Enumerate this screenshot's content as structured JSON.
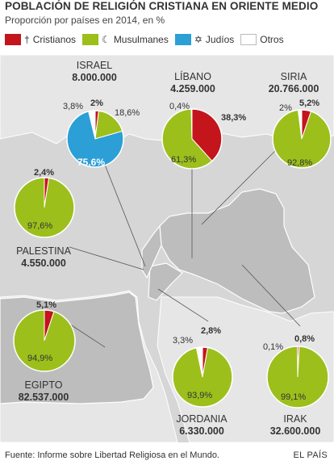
{
  "header": {
    "title": "POBLACIÓN DE RELIGIÓN CRISTIANA EN ORIENTE MEDIO",
    "subtitle": "Proporción por países en 2014, en %"
  },
  "legend": [
    {
      "label": "Cristianos",
      "symbol": "†",
      "color": "#c3151b"
    },
    {
      "label": "Musulmanes",
      "symbol": "☾",
      "color": "#9cbf1c"
    },
    {
      "label": "Judíos",
      "symbol": "✡",
      "color": "#2b9fd6"
    },
    {
      "label": "Otros",
      "symbol": "",
      "color": "#ffffff"
    }
  ],
  "chart_data": {
    "type": "pie",
    "title": "POBLACIÓN DE RELIGIÓN CRISTIANA EN ORIENTE MEDIO",
    "subtitle": "Proporción por países en 2014, en %",
    "series_names": [
      "Cristianos",
      "Musulmanes",
      "Judíos",
      "Otros"
    ],
    "pies": [
      {
        "country": "ISRAEL",
        "population": "8.000.000",
        "slices": [
          {
            "series": "Cristianos",
            "value": 2,
            "label": "2%"
          },
          {
            "series": "Musulmanes",
            "value": 18.6,
            "label": "18,6%"
          },
          {
            "series": "Judíos",
            "value": 75.6,
            "label": "75,6%"
          },
          {
            "series": "Otros",
            "value": 3.8,
            "label": "3,8%"
          }
        ]
      },
      {
        "country": "LÍBANO",
        "population": "4.259.000",
        "slices": [
          {
            "series": "Cristianos",
            "value": 38.3,
            "label": "38,3%"
          },
          {
            "series": "Musulmanes",
            "value": 61.3,
            "label": "61,3%"
          },
          {
            "series": "Otros",
            "value": 0.4,
            "label": "0,4%"
          }
        ]
      },
      {
        "country": "SIRIA",
        "population": "20.766.000",
        "slices": [
          {
            "series": "Cristianos",
            "value": 5.2,
            "label": "5,2%"
          },
          {
            "series": "Musulmanes",
            "value": 92.8,
            "label": "92,8%"
          },
          {
            "series": "Otros",
            "value": 2,
            "label": "2%"
          }
        ]
      },
      {
        "country": "PALESTINA",
        "population": "4.550.000",
        "slices": [
          {
            "series": "Cristianos",
            "value": 2.4,
            "label": "2,4%"
          },
          {
            "series": "Musulmanes",
            "value": 97.6,
            "label": "97,6%"
          }
        ]
      },
      {
        "country": "EGIPTO",
        "population": "82.537.000",
        "slices": [
          {
            "series": "Cristianos",
            "value": 5.1,
            "label": "5,1%"
          },
          {
            "series": "Musulmanes",
            "value": 94.9,
            "label": "94,9%"
          }
        ]
      },
      {
        "country": "JORDANIA",
        "population": "6.330.000",
        "slices": [
          {
            "series": "Cristianos",
            "value": 2.8,
            "label": "2,8%"
          },
          {
            "series": "Musulmanes",
            "value": 93.9,
            "label": "93,9%"
          },
          {
            "series": "Otros",
            "value": 3.3,
            "label": "3,3%"
          }
        ]
      },
      {
        "country": "IRAK",
        "population": "32.600.000",
        "slices": [
          {
            "series": "Cristianos",
            "value": 0.8,
            "label": "0,8%"
          },
          {
            "series": "Musulmanes",
            "value": 99.1,
            "label": "99,1%"
          },
          {
            "series": "Otros",
            "value": 0.1,
            "label": "0,1%"
          }
        ]
      }
    ]
  },
  "footer": {
    "source": "Fuente: Informe sobre Libertad Religiosa en el Mundo.",
    "brand": "EL PAÍS"
  }
}
